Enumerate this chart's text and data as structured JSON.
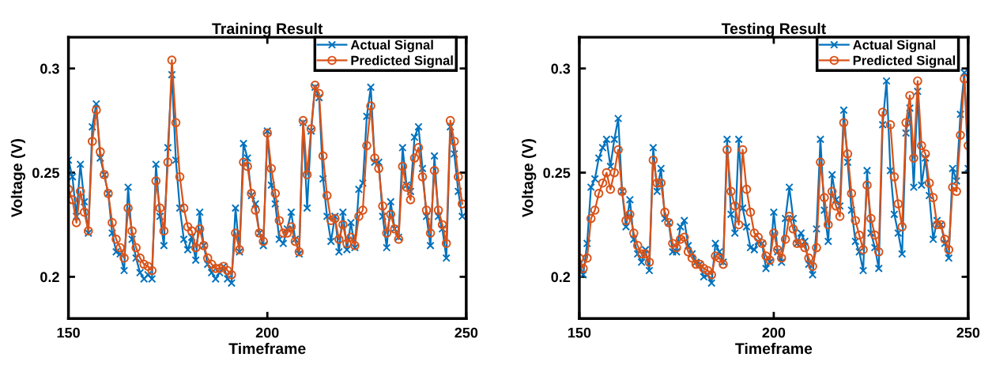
{
  "chart_data": [
    {
      "type": "line",
      "title": "Training Result",
      "xlabel": "Timeframe",
      "ylabel": "Voltage (V)",
      "x": [
        150,
        151,
        152,
        153,
        154,
        155,
        156,
        157,
        158,
        159,
        160,
        161,
        162,
        163,
        164,
        165,
        166,
        167,
        168,
        169,
        170,
        171,
        172,
        173,
        174,
        175,
        176,
        177,
        178,
        179,
        180,
        181,
        182,
        183,
        184,
        185,
        186,
        187,
        188,
        189,
        190,
        191,
        192,
        193,
        194,
        195,
        196,
        197,
        198,
        199,
        200,
        201,
        202,
        203,
        204,
        205,
        206,
        207,
        208,
        209,
        210,
        211,
        212,
        213,
        214,
        215,
        216,
        217,
        218,
        219,
        220,
        221,
        222,
        223,
        224,
        225,
        226,
        227,
        228,
        229,
        230,
        231,
        232,
        233,
        234,
        235,
        236,
        237,
        238,
        239,
        240,
        241,
        242,
        243,
        244,
        245,
        246,
        247,
        248,
        249
      ],
      "xlim": [
        150,
        250
      ],
      "ylim": [
        0.18,
        0.315
      ],
      "xticks": [
        150,
        200,
        250
      ],
      "yticks": [
        0.2,
        0.25,
        0.3
      ],
      "grid": false,
      "legend": "top right",
      "line_style": "solid",
      "series": [
        {
          "name": "Actual Signal",
          "color": "#0072bd",
          "marker": "cross",
          "values": [
            0.256,
            0.248,
            0.229,
            0.254,
            0.236,
            0.221,
            0.272,
            0.283,
            0.257,
            0.249,
            0.24,
            0.221,
            0.212,
            0.211,
            0.203,
            0.243,
            0.218,
            0.209,
            0.202,
            0.199,
            0.201,
            0.199,
            0.254,
            0.229,
            0.215,
            0.262,
            0.297,
            0.256,
            0.233,
            0.218,
            0.213,
            0.219,
            0.208,
            0.231,
            0.215,
            0.206,
            0.202,
            0.199,
            0.202,
            0.205,
            0.199,
            0.197,
            0.233,
            0.212,
            0.264,
            0.257,
            0.239,
            0.235,
            0.221,
            0.215,
            0.27,
            0.244,
            0.235,
            0.218,
            0.216,
            0.223,
            0.231,
            0.218,
            0.211,
            0.274,
            0.233,
            0.27,
            0.291,
            0.286,
            0.247,
            0.229,
            0.217,
            0.229,
            0.212,
            0.231,
            0.213,
            0.226,
            0.214,
            0.242,
            0.245,
            0.277,
            0.291,
            0.255,
            0.255,
            0.229,
            0.214,
            0.236,
            0.223,
            0.219,
            0.262,
            0.244,
            0.241,
            0.267,
            0.272,
            0.252,
            0.229,
            0.215,
            0.258,
            0.229,
            0.223,
            0.209,
            0.272,
            0.259,
            0.241,
            0.229
          ]
        },
        {
          "name": "Predicted Signal",
          "color": "#d95319",
          "marker": "circle",
          "values": [
            0.242,
            0.237,
            0.226,
            0.241,
            0.231,
            0.222,
            0.265,
            0.28,
            0.26,
            0.249,
            0.24,
            0.226,
            0.218,
            0.214,
            0.209,
            0.233,
            0.222,
            0.214,
            0.209,
            0.206,
            0.205,
            0.203,
            0.246,
            0.233,
            0.222,
            0.255,
            0.304,
            0.274,
            0.248,
            0.233,
            0.224,
            0.222,
            0.214,
            0.223,
            0.215,
            0.209,
            0.206,
            0.204,
            0.204,
            0.205,
            0.203,
            0.201,
            0.221,
            0.213,
            0.255,
            0.253,
            0.24,
            0.232,
            0.221,
            0.217,
            0.269,
            0.252,
            0.24,
            0.227,
            0.221,
            0.221,
            0.224,
            0.217,
            0.212,
            0.275,
            0.249,
            0.271,
            0.292,
            0.288,
            0.258,
            0.239,
            0.227,
            0.228,
            0.218,
            0.225,
            0.216,
            0.219,
            0.215,
            0.229,
            0.232,
            0.263,
            0.282,
            0.257,
            0.252,
            0.234,
            0.221,
            0.23,
            0.223,
            0.218,
            0.253,
            0.243,
            0.237,
            0.257,
            0.262,
            0.248,
            0.232,
            0.221,
            0.251,
            0.232,
            0.225,
            0.216,
            0.275,
            0.265,
            0.248,
            0.235
          ]
        }
      ]
    },
    {
      "type": "line",
      "title": "Testing Result",
      "xlabel": "Timeframe",
      "ylabel": "Voltage (V)",
      "x": [
        150,
        151,
        152,
        153,
        154,
        155,
        156,
        157,
        158,
        159,
        160,
        161,
        162,
        163,
        164,
        165,
        166,
        167,
        168,
        169,
        170,
        171,
        172,
        173,
        174,
        175,
        176,
        177,
        178,
        179,
        180,
        181,
        182,
        183,
        184,
        185,
        186,
        187,
        188,
        189,
        190,
        191,
        192,
        193,
        194,
        195,
        196,
        197,
        198,
        199,
        200,
        201,
        202,
        203,
        204,
        205,
        206,
        207,
        208,
        209,
        210,
        211,
        212,
        213,
        214,
        215,
        216,
        217,
        218,
        219,
        220,
        221,
        222,
        223,
        224,
        225,
        226,
        227,
        228,
        229,
        230,
        231,
        232,
        233,
        234,
        235,
        236,
        237,
        238,
        239,
        240,
        241,
        242,
        243,
        244,
        245,
        246,
        247,
        248,
        249,
        250
      ],
      "xlim": [
        150,
        250
      ],
      "ylim": [
        0.18,
        0.315
      ],
      "xticks": [
        150,
        200,
        250
      ],
      "yticks": [
        0.2,
        0.25,
        0.3
      ],
      "grid": false,
      "legend": "top right",
      "line_style": "solid",
      "series": [
        {
          "name": "Actual Signal",
          "color": "#0072bd",
          "marker": "cross",
          "values": [
            0.206,
            0.201,
            0.216,
            0.243,
            0.247,
            0.257,
            0.262,
            0.266,
            0.253,
            0.266,
            0.276,
            0.241,
            0.224,
            0.237,
            0.218,
            0.211,
            0.207,
            0.213,
            0.203,
            0.262,
            0.241,
            0.252,
            0.228,
            0.226,
            0.212,
            0.212,
            0.224,
            0.227,
            0.215,
            0.211,
            0.207,
            0.206,
            0.2,
            0.201,
            0.197,
            0.216,
            0.212,
            0.207,
            0.266,
            0.23,
            0.221,
            0.266,
            0.233,
            0.224,
            0.214,
            0.213,
            0.217,
            0.216,
            0.204,
            0.207,
            0.231,
            0.212,
            0.207,
            0.228,
            0.243,
            0.228,
            0.216,
            0.221,
            0.217,
            0.206,
            0.201,
            0.223,
            0.266,
            0.232,
            0.217,
            0.249,
            0.237,
            0.234,
            0.28,
            0.255,
            0.232,
            0.217,
            0.212,
            0.203,
            0.251,
            0.221,
            0.214,
            0.204,
            0.273,
            0.294,
            0.251,
            0.23,
            0.221,
            0.211,
            0.269,
            0.281,
            0.243,
            0.289,
            0.244,
            0.257,
            0.239,
            0.218,
            0.227,
            0.225,
            0.216,
            0.209,
            0.252,
            0.246,
            0.278,
            0.298,
            0.252
          ]
        },
        {
          "name": "Predicted Signal",
          "color": "#d95319",
          "marker": "circle",
          "values": [
            0.209,
            0.204,
            0.209,
            0.228,
            0.232,
            0.24,
            0.245,
            0.25,
            0.242,
            0.25,
            0.261,
            0.241,
            0.227,
            0.23,
            0.221,
            0.215,
            0.211,
            0.211,
            0.207,
            0.256,
            0.245,
            0.245,
            0.231,
            0.226,
            0.216,
            0.214,
            0.218,
            0.219,
            0.212,
            0.209,
            0.206,
            0.206,
            0.204,
            0.203,
            0.201,
            0.21,
            0.209,
            0.206,
            0.261,
            0.241,
            0.234,
            0.225,
            0.261,
            0.242,
            0.231,
            0.221,
            0.219,
            0.216,
            0.21,
            0.208,
            0.221,
            0.213,
            0.209,
            0.218,
            0.229,
            0.223,
            0.216,
            0.216,
            0.214,
            0.209,
            0.205,
            0.214,
            0.255,
            0.238,
            0.225,
            0.241,
            0.234,
            0.229,
            0.274,
            0.259,
            0.24,
            0.227,
            0.22,
            0.213,
            0.244,
            0.228,
            0.22,
            0.212,
            0.279,
            null,
            0.273,
            0.248,
            0.235,
            0.224,
            0.274,
            0.287,
            0.257,
            0.294,
            0.263,
            0.259,
            0.245,
            0.238,
            0.225,
            0.225,
            0.218,
            0.213,
            0.243,
            0.241,
            0.268,
            0.295,
            0.263
          ]
        }
      ]
    }
  ]
}
